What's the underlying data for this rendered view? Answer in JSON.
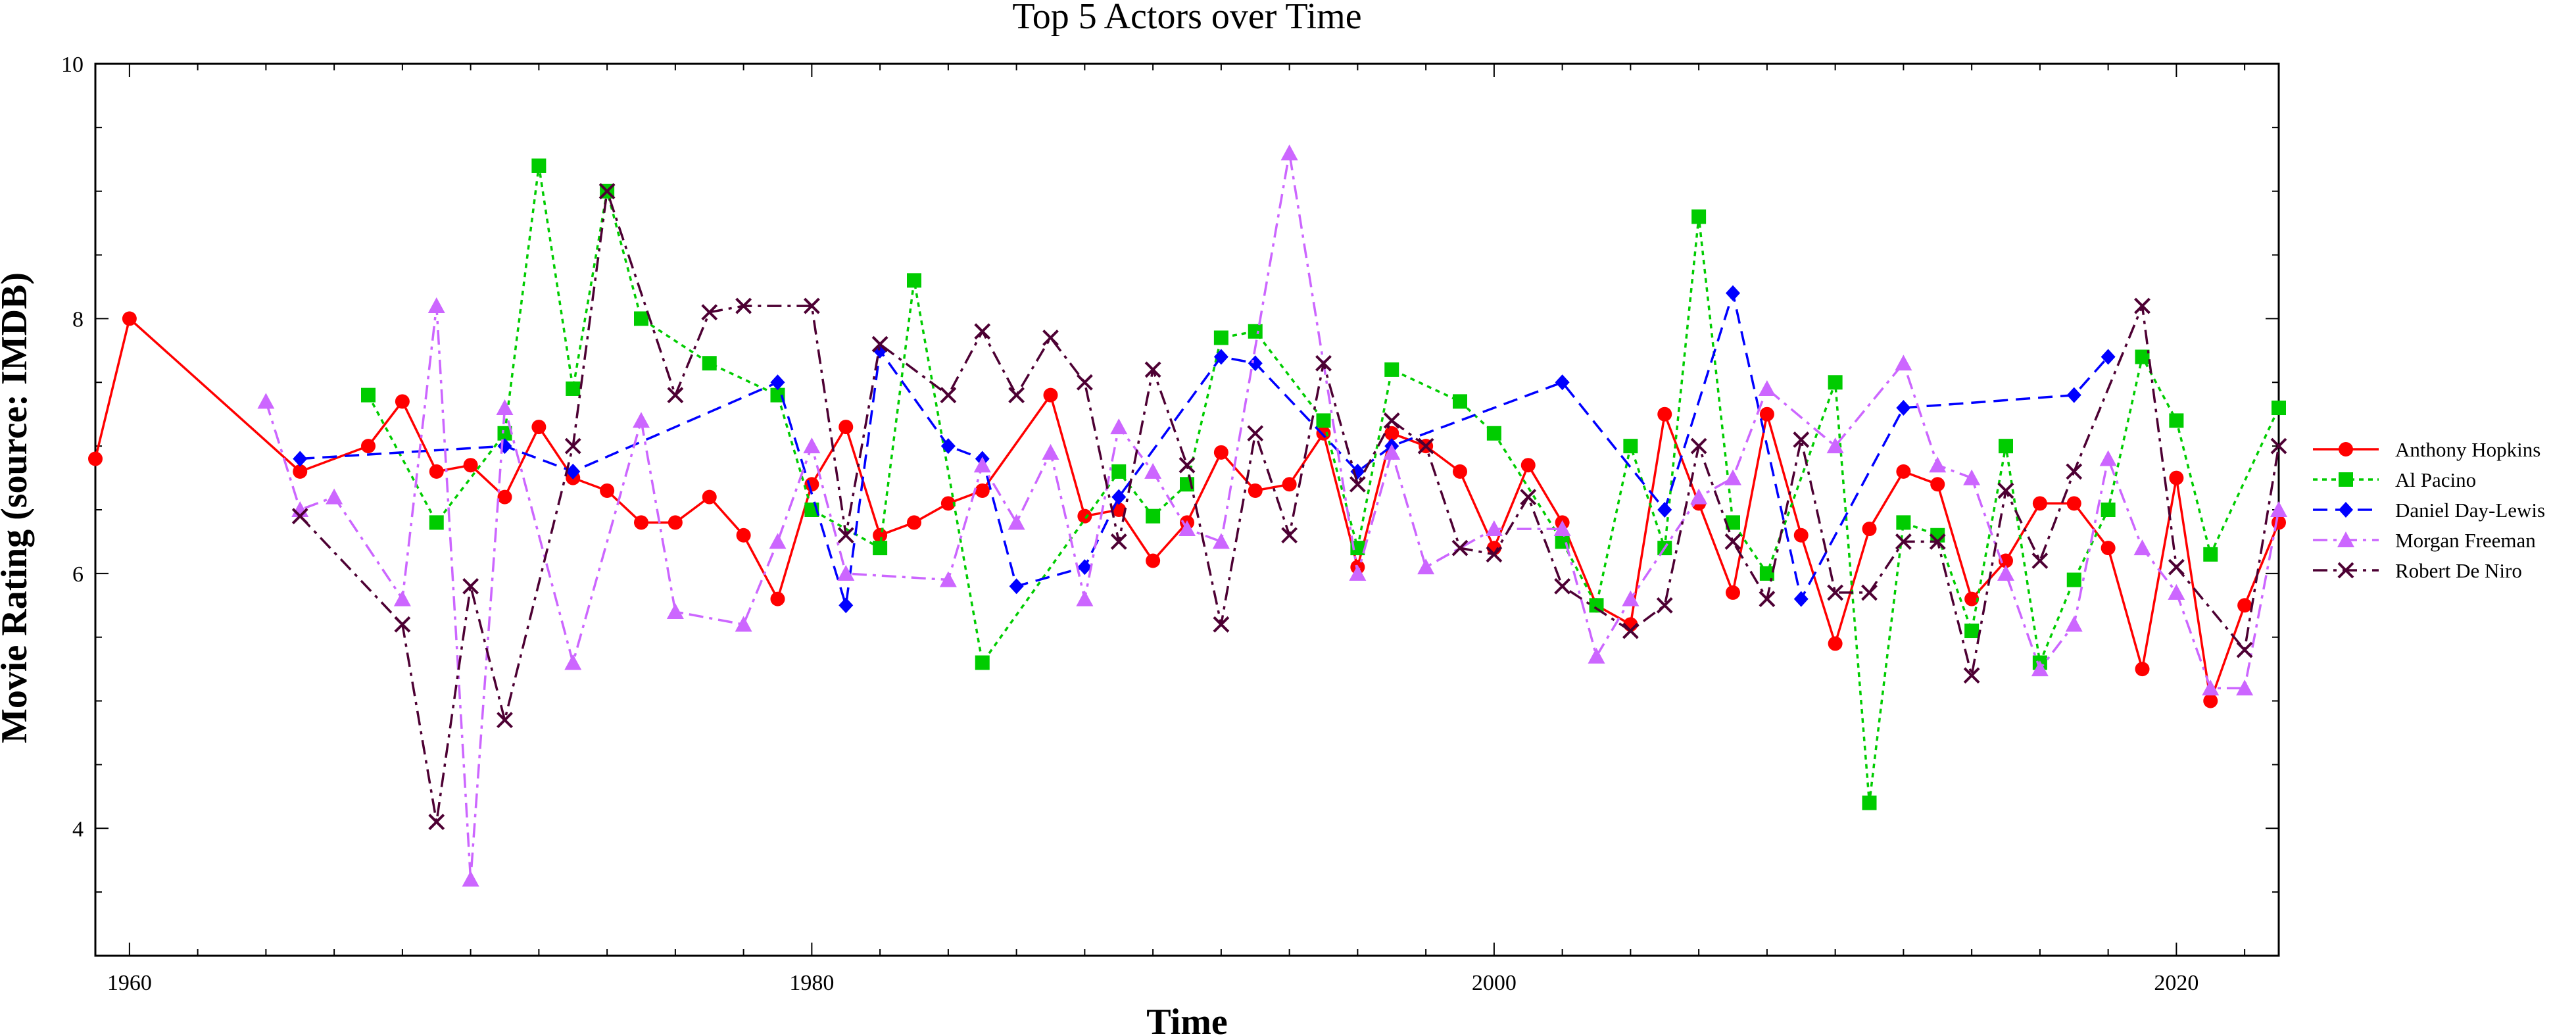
{
  "chart_data": {
    "type": "line",
    "title": "Top 5 Actors over Time",
    "xlabel": "Time",
    "ylabel": "Movie Rating (source: IMDB)",
    "xlim": [
      1959,
      2023
    ],
    "ylim": [
      3,
      10
    ],
    "x_ticks": [
      1960,
      1980,
      2000,
      2020
    ],
    "y_ticks": [
      4,
      6,
      8,
      10
    ],
    "grid": false,
    "legend_position": "right",
    "series": [
      {
        "name": "Anthony Hopkins",
        "color": "#ff0000",
        "line_style": "solid",
        "marker": "circle",
        "points": [
          [
            1959,
            6.9
          ],
          [
            1960,
            8.0
          ],
          [
            1965,
            6.8
          ],
          [
            1967,
            7.0
          ],
          [
            1968,
            7.35
          ],
          [
            1969,
            6.8
          ],
          [
            1970,
            6.85
          ],
          [
            1971,
            6.6
          ],
          [
            1972,
            7.15
          ],
          [
            1973,
            6.75
          ],
          [
            1974,
            6.65
          ],
          [
            1975,
            6.4
          ],
          [
            1976,
            6.4
          ],
          [
            1977,
            6.6
          ],
          [
            1978,
            6.3
          ],
          [
            1979,
            5.8
          ],
          [
            1980,
            6.7
          ],
          [
            1981,
            7.15
          ],
          [
            1982,
            6.3
          ],
          [
            1983,
            6.4
          ],
          [
            1984,
            6.55
          ],
          [
            1985,
            6.65
          ],
          [
            1987,
            7.4
          ],
          [
            1988,
            6.45
          ],
          [
            1989,
            6.5
          ],
          [
            1990,
            6.1
          ],
          [
            1991,
            6.4
          ],
          [
            1992,
            6.95
          ],
          [
            1993,
            6.65
          ],
          [
            1994,
            6.7
          ],
          [
            1995,
            7.1
          ],
          [
            1996,
            6.05
          ],
          [
            1997,
            7.1
          ],
          [
            1998,
            7.0
          ],
          [
            1999,
            6.8
          ],
          [
            2000,
            6.2
          ],
          [
            2001,
            6.85
          ],
          [
            2002,
            6.4
          ],
          [
            2003,
            5.75
          ],
          [
            2004,
            5.6
          ],
          [
            2005,
            7.25
          ],
          [
            2006,
            6.55
          ],
          [
            2007,
            5.85
          ],
          [
            2008,
            7.25
          ],
          [
            2009,
            6.3
          ],
          [
            2010,
            5.45
          ],
          [
            2011,
            6.35
          ],
          [
            2012,
            6.8
          ],
          [
            2013,
            6.7
          ],
          [
            2014,
            5.8
          ],
          [
            2015,
            6.1
          ],
          [
            2016,
            6.55
          ],
          [
            2017,
            6.55
          ],
          [
            2018,
            6.2
          ],
          [
            2019,
            5.25
          ],
          [
            2020,
            6.75
          ],
          [
            2021,
            5.0
          ],
          [
            2022,
            5.75
          ],
          [
            2023,
            6.4
          ]
        ]
      },
      {
        "name": "Al Pacino",
        "color": "#00cc00",
        "line_style": "dotted",
        "marker": "square",
        "points": [
          [
            1967,
            7.4
          ],
          [
            1969,
            6.4
          ],
          [
            1971,
            7.1
          ],
          [
            1972,
            9.2
          ],
          [
            1973,
            7.45
          ],
          [
            1974,
            9.0
          ],
          [
            1975,
            8.0
          ],
          [
            1977,
            7.65
          ],
          [
            1979,
            7.4
          ],
          [
            1980,
            6.5
          ],
          [
            1982,
            6.2
          ],
          [
            1983,
            8.3
          ],
          [
            1985,
            5.3
          ],
          [
            1989,
            6.8
          ],
          [
            1990,
            6.45
          ],
          [
            1991,
            6.7
          ],
          [
            1992,
            7.85
          ],
          [
            1993,
            7.9
          ],
          [
            1995,
            7.2
          ],
          [
            1996,
            6.2
          ],
          [
            1997,
            7.6
          ],
          [
            1999,
            7.35
          ],
          [
            2000,
            7.1
          ],
          [
            2002,
            6.25
          ],
          [
            2003,
            5.75
          ],
          [
            2004,
            7.0
          ],
          [
            2005,
            6.2
          ],
          [
            2006,
            8.8
          ],
          [
            2007,
            6.4
          ],
          [
            2008,
            6.0
          ],
          [
            2010,
            7.5
          ],
          [
            2011,
            4.2
          ],
          [
            2012,
            6.4
          ],
          [
            2013,
            6.3
          ],
          [
            2014,
            5.55
          ],
          [
            2015,
            7.0
          ],
          [
            2016,
            5.3
          ],
          [
            2017,
            5.95
          ],
          [
            2018,
            6.5
          ],
          [
            2019,
            7.7
          ],
          [
            2020,
            7.2
          ],
          [
            2021,
            6.15
          ],
          [
            2023,
            7.3
          ]
        ]
      },
      {
        "name": "Daniel Day-Lewis",
        "color": "#0000ff",
        "line_style": "dashed",
        "marker": "diamond",
        "points": [
          [
            1965,
            6.9
          ],
          [
            1971,
            7.0
          ],
          [
            1973,
            6.8
          ],
          [
            1979,
            7.5
          ],
          [
            1981,
            5.75
          ],
          [
            1982,
            7.75
          ],
          [
            1984,
            7.0
          ],
          [
            1985,
            6.9
          ],
          [
            1986,
            5.9
          ],
          [
            1988,
            6.05
          ],
          [
            1989,
            6.6
          ],
          [
            1992,
            7.7
          ],
          [
            1993,
            7.65
          ],
          [
            1996,
            6.8
          ],
          [
            1997,
            7.0
          ],
          [
            2002,
            7.5
          ],
          [
            2005,
            6.5
          ],
          [
            2007,
            8.2
          ],
          [
            2009,
            5.8
          ],
          [
            2012,
            7.3
          ],
          [
            2017,
            7.4
          ],
          [
            2018,
            7.7
          ]
        ]
      },
      {
        "name": "Morgan Freeman",
        "color": "#cc66ff",
        "line_style": "dashdot",
        "marker": "triangle",
        "points": [
          [
            1964,
            7.35
          ],
          [
            1965,
            6.5
          ],
          [
            1966,
            6.6
          ],
          [
            1968,
            5.8
          ],
          [
            1969,
            8.1
          ],
          [
            1970,
            3.6
          ],
          [
            1971,
            7.3
          ],
          [
            1973,
            5.3
          ],
          [
            1975,
            7.2
          ],
          [
            1976,
            5.7
          ],
          [
            1978,
            5.6
          ],
          [
            1979,
            6.25
          ],
          [
            1980,
            7.0
          ],
          [
            1981,
            6.0
          ],
          [
            1984,
            5.95
          ],
          [
            1985,
            6.85
          ],
          [
            1986,
            6.4
          ],
          [
            1987,
            6.95
          ],
          [
            1988,
            5.8
          ],
          [
            1989,
            7.15
          ],
          [
            1990,
            6.8
          ],
          [
            1991,
            6.35
          ],
          [
            1992,
            6.25
          ],
          [
            1994,
            9.3
          ],
          [
            1996,
            6.0
          ],
          [
            1997,
            6.95
          ],
          [
            1998,
            6.05
          ],
          [
            2000,
            6.35
          ],
          [
            2002,
            6.35
          ],
          [
            2003,
            5.35
          ],
          [
            2004,
            5.8
          ],
          [
            2006,
            6.6
          ],
          [
            2007,
            6.75
          ],
          [
            2008,
            7.45
          ],
          [
            2010,
            7.0
          ],
          [
            2012,
            7.65
          ],
          [
            2013,
            6.85
          ],
          [
            2014,
            6.75
          ],
          [
            2015,
            6.0
          ],
          [
            2016,
            5.25
          ],
          [
            2017,
            5.6
          ],
          [
            2018,
            6.9
          ],
          [
            2019,
            6.2
          ],
          [
            2020,
            5.85
          ],
          [
            2021,
            5.1
          ],
          [
            2022,
            5.1
          ],
          [
            2023,
            6.5
          ]
        ]
      },
      {
        "name": "Robert De Niro",
        "color": "#4d0033",
        "line_style": "dashdot",
        "marker": "x",
        "points": [
          [
            1965,
            6.45
          ],
          [
            1968,
            5.6
          ],
          [
            1969,
            4.05
          ],
          [
            1970,
            5.9
          ],
          [
            1971,
            4.85
          ],
          [
            1973,
            7.0
          ],
          [
            1974,
            9.0
          ],
          [
            1976,
            7.4
          ],
          [
            1977,
            8.05
          ],
          [
            1978,
            8.1
          ],
          [
            1980,
            8.1
          ],
          [
            1981,
            6.3
          ],
          [
            1982,
            7.8
          ],
          [
            1984,
            7.4
          ],
          [
            1985,
            7.9
          ],
          [
            1986,
            7.4
          ],
          [
            1987,
            7.85
          ],
          [
            1988,
            7.5
          ],
          [
            1989,
            6.25
          ],
          [
            1990,
            7.6
          ],
          [
            1991,
            6.85
          ],
          [
            1992,
            5.6
          ],
          [
            1993,
            7.1
          ],
          [
            1994,
            6.3
          ],
          [
            1995,
            7.65
          ],
          [
            1996,
            6.7
          ],
          [
            1997,
            7.2
          ],
          [
            1998,
            7.0
          ],
          [
            1999,
            6.2
          ],
          [
            2000,
            6.15
          ],
          [
            2001,
            6.6
          ],
          [
            2002,
            5.9
          ],
          [
            2004,
            5.55
          ],
          [
            2005,
            5.75
          ],
          [
            2006,
            7.0
          ],
          [
            2007,
            6.25
          ],
          [
            2008,
            5.8
          ],
          [
            2009,
            7.05
          ],
          [
            2010,
            5.85
          ],
          [
            2011,
            5.85
          ],
          [
            2012,
            6.25
          ],
          [
            2013,
            6.25
          ],
          [
            2014,
            5.2
          ],
          [
            2015,
            6.65
          ],
          [
            2016,
            6.1
          ],
          [
            2017,
            6.8
          ],
          [
            2019,
            8.1
          ],
          [
            2020,
            6.05
          ],
          [
            2022,
            5.4
          ],
          [
            2023,
            7.0
          ]
        ]
      }
    ]
  }
}
